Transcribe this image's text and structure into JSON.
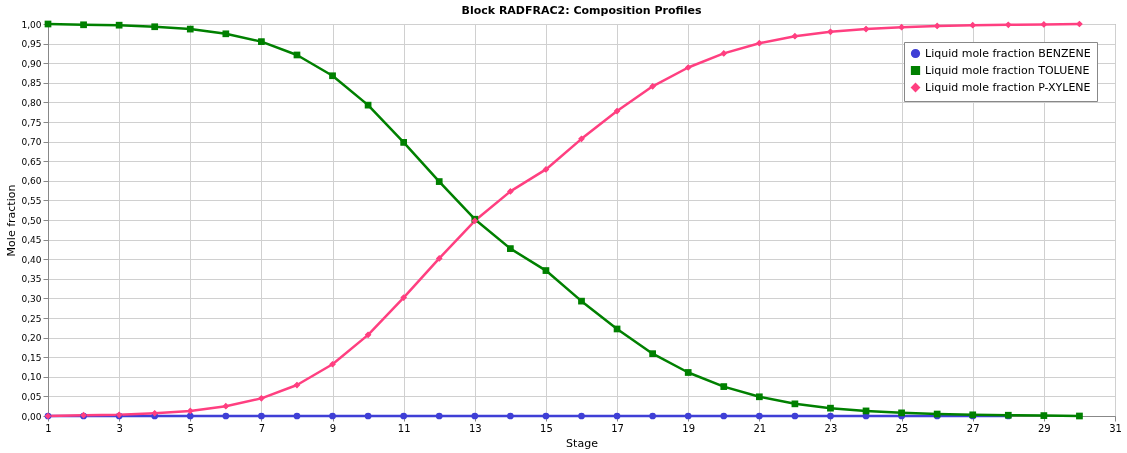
{
  "chart_data": {
    "type": "line",
    "title": "Block RADFRAC2: Composition Profiles",
    "xlabel": "Stage",
    "ylabel": "Mole fraction",
    "x": [
      1,
      2,
      3,
      4,
      5,
      6,
      7,
      8,
      9,
      10,
      11,
      12,
      13,
      14,
      15,
      16,
      17,
      18,
      19,
      20,
      21,
      22,
      23,
      24,
      25,
      26,
      27,
      28,
      29,
      30
    ],
    "series": [
      {
        "name": "Liquid mole fraction BENZENE",
        "color": "#3f3fd6",
        "marker": "circle",
        "values": [
          0,
          0,
          0,
          0,
          0,
          0,
          0,
          0,
          0,
          0,
          0,
          0,
          0,
          0,
          0,
          0,
          0,
          0,
          0,
          0,
          0,
          0,
          0,
          0,
          0,
          0,
          0,
          0,
          null,
          null
        ]
      },
      {
        "name": "Liquid mole fraction TOLUENE",
        "color": "#008000",
        "marker": "square",
        "values": [
          1.0,
          0.998,
          0.997,
          0.993,
          0.987,
          0.975,
          0.955,
          0.921,
          0.868,
          0.793,
          0.698,
          0.598,
          0.502,
          0.427,
          0.371,
          0.293,
          0.222,
          0.159,
          0.111,
          0.075,
          0.049,
          0.031,
          0.02,
          0.013,
          0.008,
          0.005,
          0.003,
          0.002,
          0.001,
          0.0
        ]
      },
      {
        "name": "Liquid mole fraction P-XYLENE",
        "color": "#ff3f80",
        "marker": "diamond",
        "values": [
          0.0,
          0.002,
          0.003,
          0.007,
          0.013,
          0.025,
          0.045,
          0.079,
          0.132,
          0.207,
          0.302,
          0.402,
          0.498,
          0.573,
          0.629,
          0.707,
          0.778,
          0.841,
          0.889,
          0.925,
          0.951,
          0.969,
          0.98,
          0.987,
          0.992,
          0.995,
          0.997,
          0.998,
          0.999,
          1.0
        ]
      }
    ],
    "xlim": [
      1,
      31
    ],
    "xticks": [
      1,
      3,
      5,
      7,
      9,
      11,
      13,
      15,
      17,
      19,
      21,
      23,
      25,
      27,
      29,
      31
    ],
    "ylim": [
      0,
      1
    ],
    "yticks": [
      {
        "value": 0,
        "label": "0,00"
      },
      {
        "value": 0.05,
        "label": "0,05"
      },
      {
        "value": 0.1,
        "label": "0,10"
      },
      {
        "value": 0.15,
        "label": "0,15"
      },
      {
        "value": 0.2,
        "label": "0,20"
      },
      {
        "value": 0.25,
        "label": "0,25"
      },
      {
        "value": 0.3,
        "label": "0,30"
      },
      {
        "value": 0.35,
        "label": "0,35"
      },
      {
        "value": 0.4,
        "label": "0,40"
      },
      {
        "value": 0.45,
        "label": "0,45"
      },
      {
        "value": 0.5,
        "label": "0,50"
      },
      {
        "value": 0.55,
        "label": "0,55"
      },
      {
        "value": 0.6,
        "label": "0,60"
      },
      {
        "value": 0.65,
        "label": "0,65"
      },
      {
        "value": 0.7,
        "label": "0,70"
      },
      {
        "value": 0.75,
        "label": "0,75"
      },
      {
        "value": 0.8,
        "label": "0,80"
      },
      {
        "value": 0.85,
        "label": "0,85"
      },
      {
        "value": 0.9,
        "label": "0,90"
      },
      {
        "value": 0.95,
        "label": "0,95"
      },
      {
        "value": 1,
        "label": "1,00"
      }
    ],
    "grid": true,
    "legend": "top right",
    "line_style": "solid"
  }
}
